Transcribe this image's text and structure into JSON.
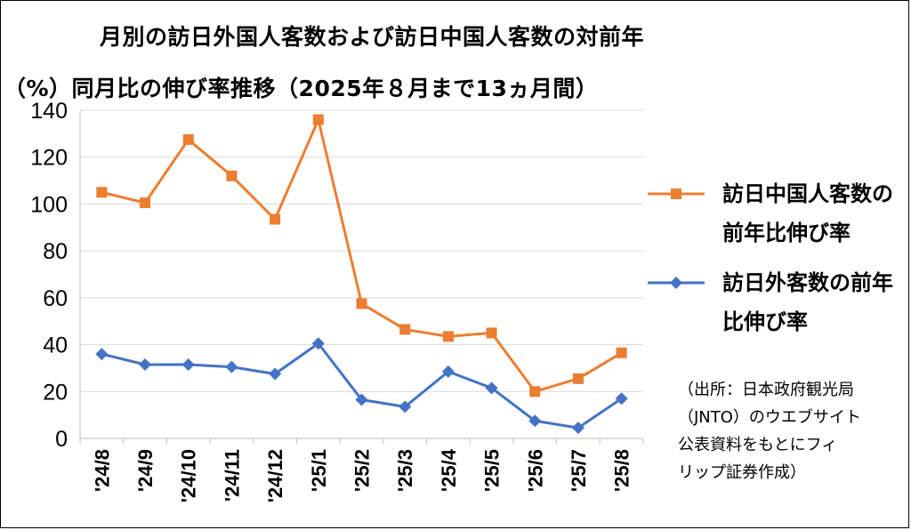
{
  "chart_data": {
    "type": "line",
    "title_line1": "月別の訪日外国人客数および訪日中国人客数の対前年",
    "title_line2": "（%）同月比の伸び率推移（2025年８月まで13ヵ月間）",
    "categories": [
      "'24/8",
      "'24/9",
      "'24/10",
      "'24/11",
      "'24/12",
      "'25/1",
      "'25/2",
      "'25/3",
      "'25/4",
      "'25/5",
      "'25/6",
      "'25/7",
      "'25/8"
    ],
    "ylim": [
      0,
      140
    ],
    "yticks": [
      0,
      20,
      40,
      60,
      80,
      100,
      120,
      140
    ],
    "grid": true,
    "legend_position": "right",
    "series": [
      {
        "name_line1": "訪日中国人客数の",
        "name_line2": "前年比伸び率",
        "color": "#ED7D31",
        "marker": "square",
        "values": [
          105,
          100.5,
          127.5,
          112,
          93.5,
          136,
          57.5,
          46.5,
          43.5,
          45,
          20,
          25.5,
          36.5
        ]
      },
      {
        "name_line1": "訪日外客数の前年",
        "name_line2": "比伸び率",
        "color": "#4472C4",
        "marker": "diamond",
        "values": [
          36,
          31.5,
          31.5,
          30.5,
          27.5,
          40.5,
          16.5,
          13.5,
          28.5,
          21.5,
          7.5,
          4.5,
          17
        ]
      }
    ],
    "source_note": [
      "（出所：日本政府観光局",
      "（JNTO）のウエブサイト",
      "公表資料をもとにフィ",
      "リップ証券作成）"
    ]
  }
}
